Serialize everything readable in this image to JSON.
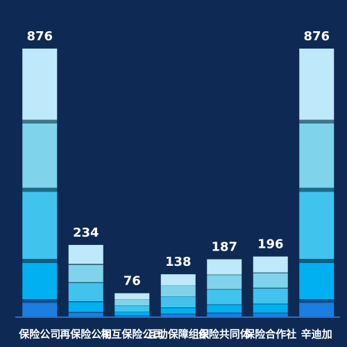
{
  "chart_data": {
    "type": "bar",
    "categories": [
      "保险公司",
      "再保险公司",
      "相互保险公司",
      "互动保障组织",
      "保险共同体",
      "保险合作社",
      "辛迪加"
    ],
    "values": [
      876,
      234,
      76,
      138,
      187,
      196,
      876
    ]
  }
}
